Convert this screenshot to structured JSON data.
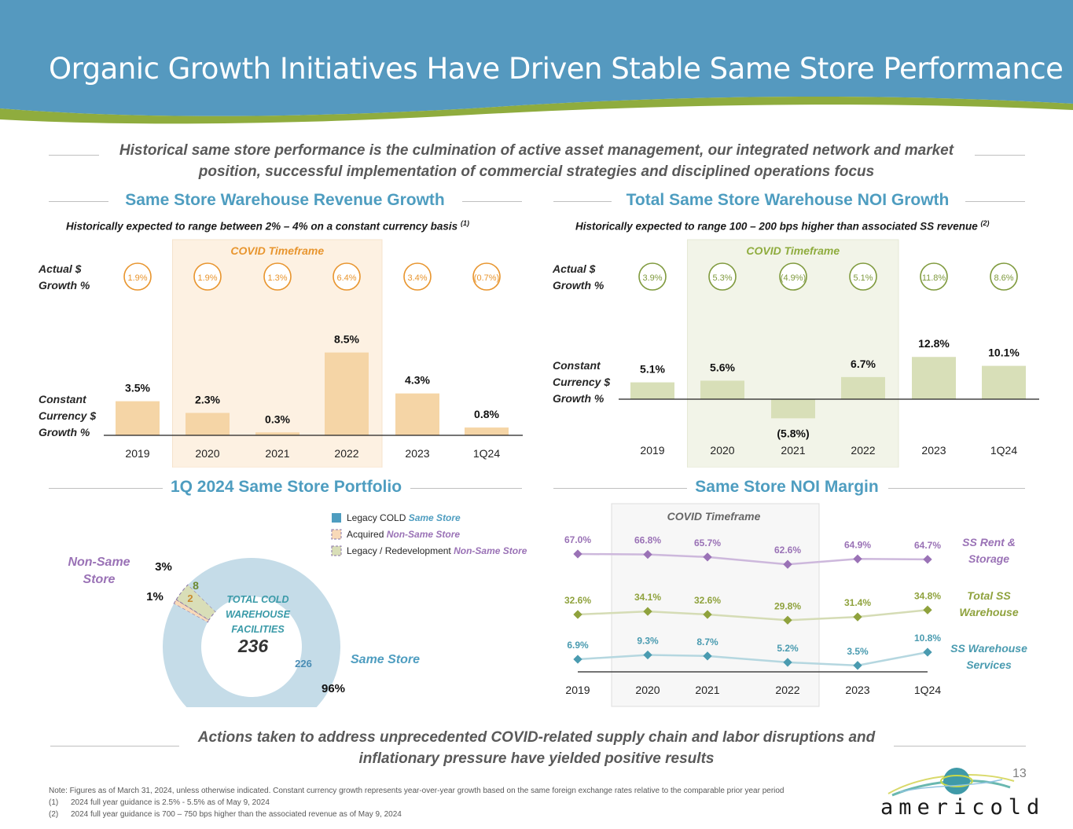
{
  "header": {
    "title": "Organic Growth Initiatives Have Driven Stable Same Store Performance",
    "band_color": "#5599bf",
    "accent_color": "#8fac3e"
  },
  "subtitle": "Historical same store performance is the culmination of active asset management, our integrated network and market position, successful implementation of commercial strategies and disciplined operations focus",
  "revenue_section": {
    "title": "Same Store Warehouse Revenue Growth",
    "subtitle": "Historically expected to range between 2% – 4% on a constant currency basis",
    "footnote_ref": "(1)"
  },
  "noi_section": {
    "title": "Total Same Store Warehouse NOI Growth",
    "subtitle": "Historically expected to range 100 – 200 bps higher than associated SS revenue",
    "footnote_ref": "(2)"
  },
  "portfolio_section": {
    "title": "1Q 2024 Same Store Portfolio"
  },
  "margin_section": {
    "title": "Same Store NOI Margin"
  },
  "chart_data": [
    {
      "type": "bar",
      "name": "revenue-growth",
      "title": "Same Store Warehouse Revenue Growth",
      "categories": [
        "2019",
        "2020",
        "2021",
        "2022",
        "2023",
        "1Q24"
      ],
      "series": [
        {
          "name": "Constant Currency $ Growth %",
          "values": [
            3.5,
            2.3,
            0.3,
            8.5,
            4.3,
            0.8
          ],
          "labels": [
            "3.5%",
            "2.3%",
            "0.3%",
            "8.5%",
            "4.3%",
            "0.8%"
          ]
        },
        {
          "name": "Actual $ Growth %",
          "values": [
            1.9,
            1.9,
            1.3,
            6.4,
            3.4,
            -0.7
          ],
          "labels": [
            "1.9%",
            "1.9%",
            "1.3%",
            "6.4%",
            "3.4%",
            "(0.7%)"
          ]
        }
      ],
      "row_labels": {
        "actual": [
          "Actual $",
          "Growth %"
        ],
        "constant": [
          "Constant",
          "Currency $",
          "Growth %"
        ]
      },
      "highlight": {
        "label": "COVID Timeframe",
        "from": "2020",
        "to": "2022"
      },
      "bar_color": "#f5d5a6",
      "highlight_fill": "#fdf1e2",
      "accent_color": "#e8952e",
      "ylim": [
        0,
        9
      ]
    },
    {
      "type": "bar",
      "name": "noi-growth",
      "title": "Total Same Store Warehouse NOI Growth",
      "categories": [
        "2019",
        "2020",
        "2021",
        "2022",
        "2023",
        "1Q24"
      ],
      "series": [
        {
          "name": "Constant Currency $ Growth %",
          "values": [
            5.1,
            5.6,
            -5.8,
            6.7,
            12.8,
            10.1
          ],
          "labels": [
            "5.1%",
            "5.6%",
            "(5.8%)",
            "6.7%",
            "12.8%",
            "10.1%"
          ]
        },
        {
          "name": "Actual $ Growth %",
          "values": [
            3.9,
            5.3,
            -4.9,
            5.1,
            11.8,
            8.6
          ],
          "labels": [
            "3.9%",
            "5.3%",
            "(4.9%)",
            "5.1%",
            "11.8%",
            "8.6%"
          ]
        }
      ],
      "row_labels": {
        "actual": [
          "Actual $",
          "Growth %"
        ],
        "constant": [
          "Constant",
          "Currency $",
          "Growth %"
        ]
      },
      "highlight": {
        "label": "COVID Timeframe",
        "from": "2020",
        "to": "2022"
      },
      "bar_color": "#d8dfb8",
      "highlight_fill": "#f2f4e8",
      "accent_color": "#7f9a3d",
      "ylim": [
        -6,
        13
      ]
    },
    {
      "type": "pie",
      "name": "same-store-portfolio",
      "title": "1Q 2024 Same Store Portfolio",
      "center_label": [
        "TOTAL COLD",
        "WAREHOUSE",
        "FACILITIES"
      ],
      "center_value": "236",
      "slices": [
        {
          "name": "Legacy COLD Same Store",
          "value": 226,
          "percent": "96%",
          "color": "#c5dce8",
          "label_color": "#4a8db5"
        },
        {
          "name": "Acquired Non-Same Store",
          "value": 2,
          "percent": "1%",
          "color": "#f8d9b8",
          "label_color": "#c78a2f"
        },
        {
          "name": "Legacy / Redevelopment Non-Same Store",
          "value": 8,
          "percent": "3%",
          "color": "#d9deb8",
          "label_color": "#6e8a32"
        }
      ],
      "legend": [
        {
          "plain": "Legacy COLD",
          "styled": "Same Store",
          "swatch": "#4e9dc0",
          "styled_color": "#4e9dc0"
        },
        {
          "plain": "Acquired",
          "styled": "Non-Same Store",
          "swatch": "#f8d9b8",
          "styled_color": "#9a72b6"
        },
        {
          "plain": "Legacy / Redevelopment",
          "styled": "Non-Same Store",
          "swatch": "#d9deb8",
          "styled_color": "#9a72b6"
        }
      ],
      "group_labels": {
        "non_same": "Non-Same Store",
        "same": "Same Store"
      },
      "legend_placement": "top-right"
    },
    {
      "type": "line",
      "name": "noi-margin",
      "title": "Same Store NOI Margin",
      "x": [
        "2019",
        "2020",
        "2021",
        "2022",
        "2023",
        "1Q24"
      ],
      "series": [
        {
          "name": "SS Rent & Storage",
          "values": [
            67.0,
            66.8,
            65.7,
            62.6,
            64.9,
            64.7
          ],
          "labels": [
            "67.0%",
            "66.8%",
            "65.7%",
            "62.6%",
            "64.9%",
            "64.7%"
          ],
          "color": "#9a72b6",
          "line_color": "#cdb8dc"
        },
        {
          "name": "Total SS Warehouse",
          "values": [
            32.6,
            34.1,
            32.6,
            29.8,
            31.4,
            34.8
          ],
          "labels": [
            "32.6%",
            "34.1%",
            "32.6%",
            "29.8%",
            "31.4%",
            "34.8%"
          ],
          "color": "#8fa23d",
          "line_color": "#d5dcb5"
        },
        {
          "name": "SS Warehouse Services",
          "values": [
            6.9,
            9.3,
            8.7,
            5.2,
            3.5,
            10.8
          ],
          "labels": [
            "6.9%",
            "9.3%",
            "8.7%",
            "5.2%",
            "3.5%",
            "10.8%"
          ],
          "color": "#4a9bb0",
          "line_color": "#b5d7e0"
        }
      ],
      "series_labels": [
        [
          "SS Rent &",
          "Storage"
        ],
        [
          "Total SS",
          "Warehouse"
        ],
        [
          "SS Warehouse",
          "Services"
        ]
      ],
      "highlight": {
        "label": "COVID Timeframe",
        "from": "2020",
        "to": "2022"
      },
      "highlight_fill": "#f7f7f7"
    }
  ],
  "bottom_message": "Actions taken to address unprecedented COVID-related supply chain and labor disruptions and inflationary pressure have yielded positive results",
  "notes": {
    "main": "Note: Figures as of March 31, 2024, unless otherwise indicated. Constant currency growth represents year-over-year growth based on the same foreign exchange rates relative to the comparable prior year period",
    "items": [
      {
        "num": "(1)",
        "text": "2024 full year guidance is 2.5% - 5.5% as of May 9, 2024"
      },
      {
        "num": "(2)",
        "text": "2024 full year guidance is 700 – 750 bps higher than the associated revenue as of May 9, 2024"
      }
    ]
  },
  "page_number": "13",
  "logo": {
    "text": "americold",
    "icon": "globe-swoosh-icon"
  }
}
